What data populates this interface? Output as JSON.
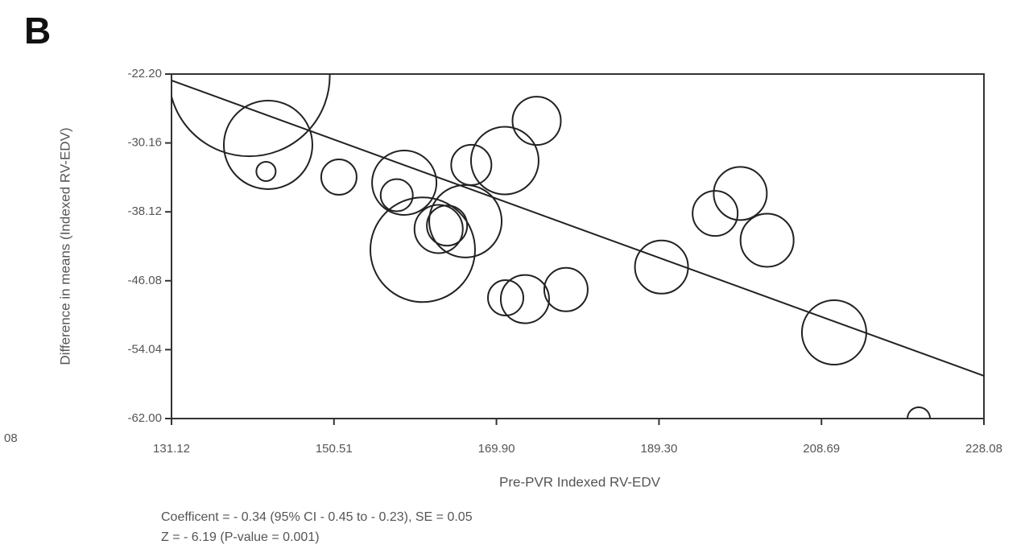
{
  "panel_label": "B",
  "edge_text": "08",
  "chart_data": {
    "type": "bubble",
    "xlabel": "Pre-PVR Indexed RV-EDV",
    "ylabel": "Difference in means (Indexed RV-EDV)",
    "annotations": [
      "Coefficent = - 0.34 (95% CI - 0.45 to - 0.23), SE = 0.05",
      "Z = - 6.19 (P-value = 0.001)"
    ],
    "xlim": [
      131.12,
      228.08
    ],
    "ylim": [
      -62,
      -22.2
    ],
    "xticks": [
      131.12,
      150.51,
      {
        "value": 169.9,
        "label": "169.90"
      },
      {
        "value": 189.3,
        "label": "189.30"
      },
      208.69,
      228.08
    ],
    "yticks": [
      {
        "value": -22.2,
        "label": "-22.20"
      },
      -30.16,
      -38.12,
      -46.08,
      -54.04,
      {
        "value": -62,
        "label": "-62.00"
      }
    ],
    "color": "#222222",
    "x": [
      140.4,
      142.65,
      142.4,
      151.1,
      158.9,
      158.0,
      161.1,
      163.0,
      164.0,
      166.2,
      166.9,
      170.9,
      174.7,
      171.0,
      173.3,
      178.2,
      189.6,
      196.0,
      199.0,
      202.2,
      210.2,
      220.3
    ],
    "values": [
      -22.4,
      -30.38,
      -33.45,
      -34.1,
      -34.75,
      -36.2,
      -42.5,
      -40.1,
      -39.7,
      -39.2,
      -32.7,
      -32.2,
      -27.6,
      -48.05,
      -48.2,
      -47.1,
      -44.5,
      -38.3,
      -36.0,
      -41.4,
      -52.05,
      -62.0
    ],
    "sizes": [
      100,
      55,
      12,
      22,
      40,
      20,
      65,
      30,
      25,
      45,
      25,
      42,
      30,
      22,
      30,
      27,
      33,
      28,
      33,
      33,
      40,
      14
    ],
    "fit_line": {
      "x": [
        131.12,
        228.08
      ],
      "y": [
        -22.94,
        -57.07
      ]
    }
  }
}
